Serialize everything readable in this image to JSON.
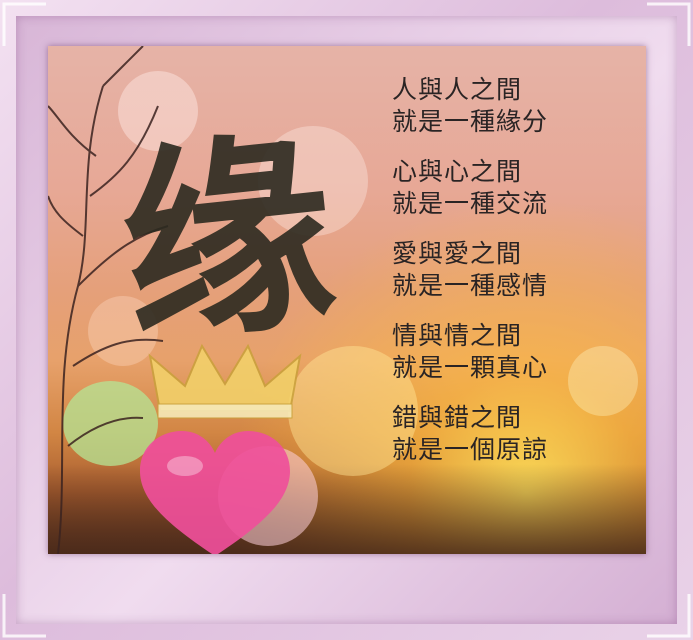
{
  "image": {
    "frame_colors": {
      "outer": "#e7cfe6",
      "inner": "#d8b6d7"
    },
    "calligraphy_char": "缘",
    "poem": [
      [
        "人與人之間",
        "就是一種緣分"
      ],
      [
        "心與心之間",
        "就是一種交流"
      ],
      [
        "愛與愛之間",
        "就是一種感情"
      ],
      [
        "情與情之間",
        "就是一顆真心"
      ],
      [
        "錯與錯之間",
        "就是一個原諒"
      ]
    ]
  }
}
